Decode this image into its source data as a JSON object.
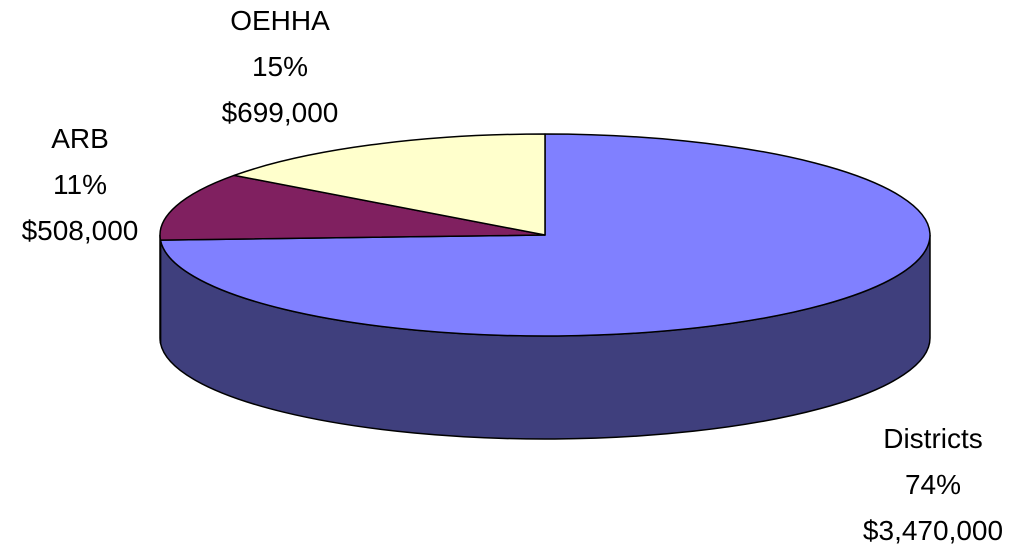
{
  "chart_data": {
    "type": "pie",
    "title": "",
    "three_d": true,
    "categories": [
      "Districts",
      "ARB",
      "OEHHA"
    ],
    "percent_labels": [
      "74%",
      "11%",
      "15%"
    ],
    "value_labels": [
      "$3,470,000",
      "$508,000",
      "$699,000"
    ],
    "values": [
      3470000,
      508000,
      699000
    ],
    "colors": [
      "#8080ff",
      "#802060",
      "#ffffcc"
    ],
    "side_colors": [
      "#3f3f7d",
      "#50123c",
      "#cccc99"
    ]
  }
}
